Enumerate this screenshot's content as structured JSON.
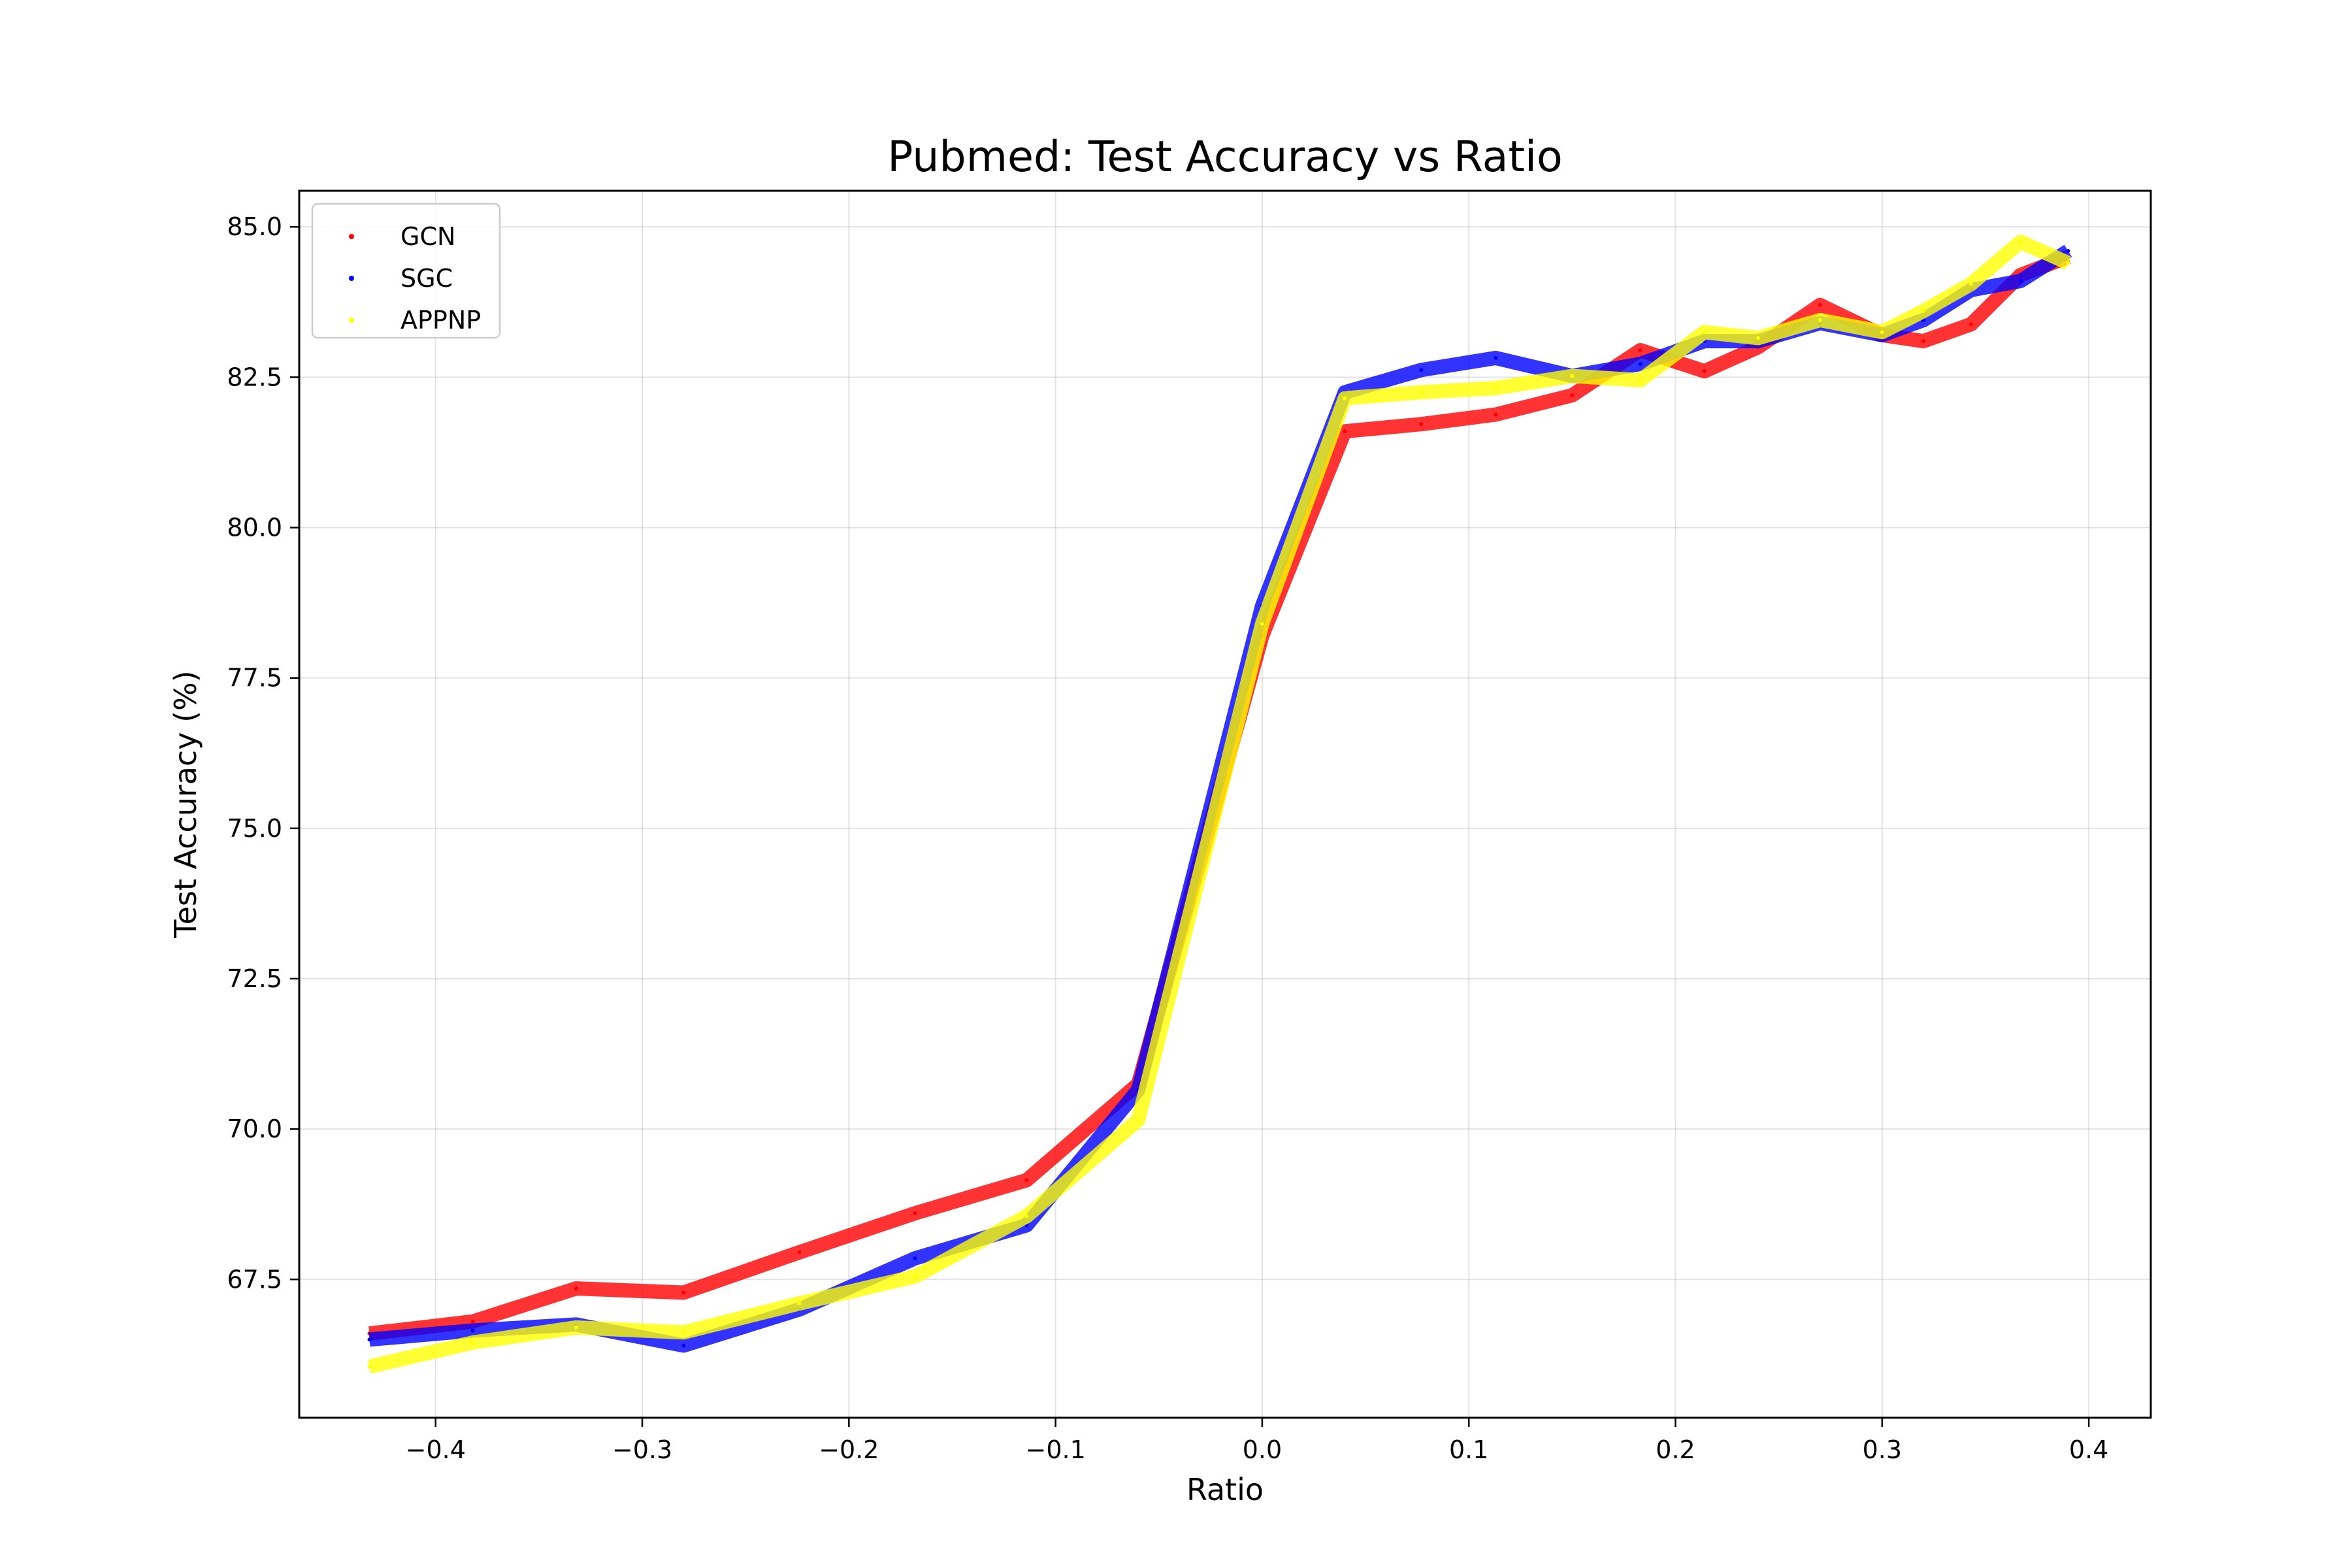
{
  "chart_data": {
    "type": "line",
    "title": "Pubmed: Test Accuracy vs Ratio",
    "xlabel": "Ratio",
    "ylabel": "Test Accuracy (%)",
    "xlim": [
      -0.466,
      0.43
    ],
    "ylim": [
      65.2,
      85.6
    ],
    "x_ticks": [
      -0.4,
      -0.3,
      -0.2,
      -0.1,
      0.0,
      0.1,
      0.2,
      0.3,
      0.4
    ],
    "x_tick_labels": [
      "−0.4",
      "−0.3",
      "−0.2",
      "−0.1",
      "0.0",
      "0.1",
      "0.2",
      "0.3",
      "0.4"
    ],
    "y_ticks": [
      67.5,
      70.0,
      72.5,
      75.0,
      77.5,
      80.0,
      82.5,
      85.0
    ],
    "y_tick_labels": [
      "67.5",
      "70.0",
      "72.5",
      "75.0",
      "77.5",
      "80.0",
      "82.5",
      "85.0"
    ],
    "grid": true,
    "legend_position": "top-left",
    "series": [
      {
        "name": "GCN",
        "color": "#ff0000",
        "x": [
          -0.432,
          -0.382,
          -0.332,
          -0.28,
          -0.224,
          -0.168,
          -0.114,
          -0.06,
          0.0,
          0.04,
          0.077,
          0.113,
          0.15,
          0.183,
          0.214,
          0.24,
          0.27,
          0.3,
          0.32,
          0.343,
          0.367,
          0.39
        ],
        "y": [
          66.6,
          66.8,
          67.35,
          67.28,
          67.95,
          68.6,
          69.15,
          70.75,
          78.2,
          81.6,
          81.72,
          81.88,
          82.2,
          82.95,
          82.6,
          83.0,
          83.7,
          83.2,
          83.1,
          83.38,
          84.2,
          84.5
        ]
      },
      {
        "name": "SGC",
        "color": "#0000ff",
        "x": [
          -0.432,
          -0.382,
          -0.332,
          -0.28,
          -0.224,
          -0.168,
          -0.114,
          -0.06,
          0.0,
          0.04,
          0.077,
          0.113,
          0.15,
          0.183,
          0.214,
          0.24,
          0.27,
          0.3,
          0.32,
          0.343,
          0.367,
          0.39
        ],
        "y": [
          66.5,
          66.65,
          66.75,
          66.4,
          67.0,
          67.85,
          68.4,
          70.65,
          78.7,
          82.25,
          82.62,
          82.82,
          82.52,
          82.72,
          83.1,
          83.1,
          83.4,
          83.2,
          83.45,
          83.95,
          84.1,
          84.6
        ]
      },
      {
        "name": "APPNP",
        "color": "#ffff00",
        "x": [
          -0.432,
          -0.382,
          -0.332,
          -0.28,
          -0.224,
          -0.168,
          -0.114,
          -0.06,
          0.0,
          0.04,
          0.077,
          0.113,
          0.15,
          0.183,
          0.214,
          0.24,
          0.27,
          0.3,
          0.32,
          0.343,
          0.367,
          0.39
        ],
        "y": [
          66.05,
          66.45,
          66.7,
          66.62,
          67.1,
          67.55,
          68.55,
          70.15,
          78.4,
          82.15,
          82.25,
          82.32,
          82.52,
          82.45,
          83.25,
          83.15,
          83.45,
          83.25,
          83.6,
          84.05,
          84.75,
          84.4
        ]
      }
    ]
  }
}
